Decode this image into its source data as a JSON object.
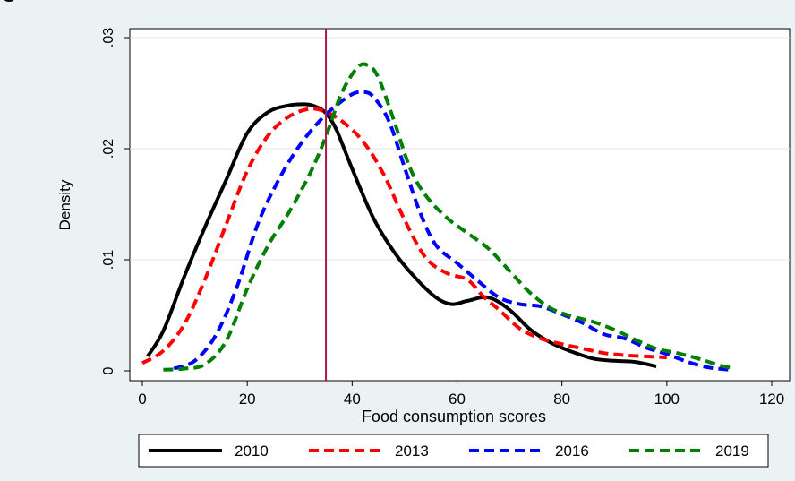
{
  "page": {
    "top_caption": "g"
  },
  "chart_data": {
    "type": "line",
    "title": "",
    "xlabel": "Food consumption scores",
    "ylabel": "Density",
    "xlim": [
      0,
      120
    ],
    "ylim": [
      0,
      0.03
    ],
    "x_ticks": [
      0,
      20,
      40,
      60,
      80,
      100,
      120
    ],
    "x_tick_labels": [
      "0",
      "20",
      "40",
      "60",
      "80",
      "100",
      "120"
    ],
    "y_ticks": [
      0,
      0.01,
      0.02,
      0.03
    ],
    "y_tick_labels": [
      "0",
      ".01",
      ".02",
      ".03"
    ],
    "grid": {
      "horizontal": true,
      "vertical": false
    },
    "legend_position": "bottom",
    "reference_line": {
      "x": 35,
      "color": "#b0164a"
    },
    "series": [
      {
        "name": "2010",
        "color": "#000000",
        "dash": "solid",
        "points": [
          [
            1,
            0.0013
          ],
          [
            4,
            0.0036
          ],
          [
            8,
            0.0085
          ],
          [
            12,
            0.013
          ],
          [
            16,
            0.0172
          ],
          [
            20,
            0.0214
          ],
          [
            24,
            0.0233
          ],
          [
            28,
            0.0239
          ],
          [
            31,
            0.024
          ],
          [
            33,
            0.0238
          ],
          [
            35,
            0.0232
          ],
          [
            37,
            0.0217
          ],
          [
            40,
            0.0182
          ],
          [
            44,
            0.0138
          ],
          [
            48,
            0.0107
          ],
          [
            52,
            0.0084
          ],
          [
            56,
            0.0066
          ],
          [
            59,
            0.006
          ],
          [
            62,
            0.0063
          ],
          [
            66,
            0.0066
          ],
          [
            70,
            0.0055
          ],
          [
            74,
            0.0037
          ],
          [
            78,
            0.0025
          ],
          [
            82,
            0.0017
          ],
          [
            86,
            0.0011
          ],
          [
            90,
            0.0009
          ],
          [
            94,
            0.0008
          ],
          [
            98,
            0.0004
          ]
        ]
      },
      {
        "name": "2013",
        "color": "#ff0000",
        "dash": "dashed",
        "points": [
          [
            0,
            0.0007
          ],
          [
            4,
            0.0018
          ],
          [
            8,
            0.0042
          ],
          [
            12,
            0.0083
          ],
          [
            16,
            0.0132
          ],
          [
            20,
            0.018
          ],
          [
            24,
            0.0212
          ],
          [
            28,
            0.0229
          ],
          [
            32,
            0.0236
          ],
          [
            35,
            0.0233
          ],
          [
            38,
            0.0225
          ],
          [
            42,
            0.0207
          ],
          [
            46,
            0.0177
          ],
          [
            50,
            0.0136
          ],
          [
            54,
            0.0102
          ],
          [
            58,
            0.0088
          ],
          [
            62,
            0.0082
          ],
          [
            65,
            0.0067
          ],
          [
            68,
            0.0055
          ],
          [
            72,
            0.0038
          ],
          [
            76,
            0.0029
          ],
          [
            80,
            0.0024
          ],
          [
            84,
            0.002
          ],
          [
            88,
            0.0016
          ],
          [
            92,
            0.0014
          ],
          [
            96,
            0.0013
          ],
          [
            100,
            0.0012
          ]
        ]
      },
      {
        "name": "2016",
        "color": "#0000ff",
        "dash": "dashed",
        "points": [
          [
            6,
            0.0002
          ],
          [
            10,
            0.0009
          ],
          [
            14,
            0.0032
          ],
          [
            18,
            0.0075
          ],
          [
            22,
            0.0132
          ],
          [
            26,
            0.0172
          ],
          [
            30,
            0.0203
          ],
          [
            34,
            0.0226
          ],
          [
            37,
            0.0239
          ],
          [
            40,
            0.0249
          ],
          [
            42,
            0.0251
          ],
          [
            44,
            0.0247
          ],
          [
            47,
            0.0225
          ],
          [
            50,
            0.0183
          ],
          [
            53,
            0.0142
          ],
          [
            56,
            0.0113
          ],
          [
            60,
            0.0097
          ],
          [
            64,
            0.0081
          ],
          [
            68,
            0.0066
          ],
          [
            72,
            0.006
          ],
          [
            76,
            0.0058
          ],
          [
            80,
            0.0051
          ],
          [
            84,
            0.0043
          ],
          [
            88,
            0.0033
          ],
          [
            92,
            0.0029
          ],
          [
            96,
            0.0021
          ],
          [
            100,
            0.0015
          ],
          [
            104,
            0.0008
          ],
          [
            108,
            0.0003
          ],
          [
            112,
            0.0001
          ]
        ]
      },
      {
        "name": "2019",
        "color": "#007f00",
        "dash": "dashed",
        "points": [
          [
            4,
            0.0001
          ],
          [
            8,
            0.0002
          ],
          [
            12,
            0.0006
          ],
          [
            16,
            0.0027
          ],
          [
            20,
            0.0074
          ],
          [
            24,
            0.0113
          ],
          [
            28,
            0.0143
          ],
          [
            32,
            0.0178
          ],
          [
            35,
            0.0211
          ],
          [
            38,
            0.025
          ],
          [
            41,
            0.0273
          ],
          [
            43,
            0.0275
          ],
          [
            45,
            0.0264
          ],
          [
            48,
            0.0225
          ],
          [
            51,
            0.0183
          ],
          [
            54,
            0.0158
          ],
          [
            58,
            0.0138
          ],
          [
            62,
            0.0124
          ],
          [
            66,
            0.011
          ],
          [
            70,
            0.009
          ],
          [
            74,
            0.007
          ],
          [
            78,
            0.0056
          ],
          [
            82,
            0.0049
          ],
          [
            86,
            0.0044
          ],
          [
            90,
            0.0037
          ],
          [
            94,
            0.0028
          ],
          [
            98,
            0.002
          ],
          [
            102,
            0.0016
          ],
          [
            106,
            0.0011
          ],
          [
            110,
            0.0005
          ],
          [
            112,
            0.0003
          ]
        ]
      }
    ]
  }
}
